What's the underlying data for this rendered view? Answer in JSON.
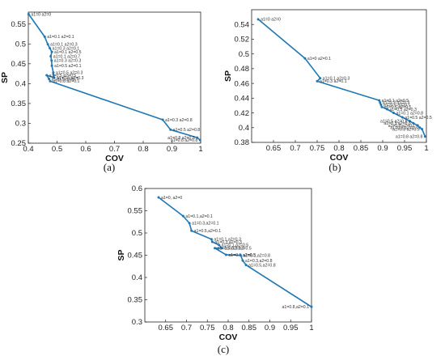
{
  "series_color": "#1f77b4",
  "chart_data": [
    {
      "type": "line",
      "caption": "(a)",
      "xlabel": "COV",
      "ylabel": "SP",
      "xlim": [
        0.4,
        1.0
      ],
      "ylim": [
        0.25,
        0.58
      ],
      "xticks": [
        "0.4",
        "0.5",
        "0.6",
        "0.7",
        "0.8",
        "0.9",
        "1"
      ],
      "yticks": [
        "0.25",
        "0.3",
        "0.35",
        "0.4",
        "0.45",
        "0.5",
        "0.55"
      ],
      "grid": false,
      "points": [
        {
          "x": 0.401,
          "y": 0.575,
          "label": "a1=0 a2=0"
        },
        {
          "x": 0.457,
          "y": 0.518,
          "label": "a1=0.1 a2=0.1"
        },
        {
          "x": 0.468,
          "y": 0.499,
          "label": "a1=0.1 a2=0.3"
        },
        {
          "x": 0.475,
          "y": 0.489,
          "label": "a1=0.3 a2=0.1"
        },
        {
          "x": 0.482,
          "y": 0.48,
          "label": "a1=0.1 a2=0.5"
        },
        {
          "x": 0.478,
          "y": 0.469,
          "label": "a1=0.1 a2=0.7"
        },
        {
          "x": 0.481,
          "y": 0.458,
          "label": "a1=0.3 a2=0.3"
        },
        {
          "x": 0.482,
          "y": 0.445,
          "label": "a1=0.5 a2=0.1"
        },
        {
          "x": 0.487,
          "y": 0.428,
          "label": "a1=0.5 a2=0.3"
        },
        {
          "x": 0.49,
          "y": 0.415,
          "label": "a1=0.6 a2=0.3"
        },
        {
          "x": 0.464,
          "y": 0.421,
          "label": "a1=0.5 a2=0.5"
        },
        {
          "x": 0.472,
          "y": 0.412,
          "label": "a1=0.5 a2=0.7"
        },
        {
          "x": 0.476,
          "y": 0.406,
          "label": "a1=0.8 a2=0.1"
        },
        {
          "x": 0.868,
          "y": 0.309,
          "label": "a1=0.3 a2=0.8"
        },
        {
          "x": 0.895,
          "y": 0.284,
          "label": "a1=0.5 a2=0.8"
        },
        {
          "x": 0.988,
          "y": 0.264,
          "label": "a1=0.8 a2=0.5"
        },
        {
          "x": 0.998,
          "y": 0.258,
          "label": "a1=0.8 a2=0.8"
        }
      ]
    },
    {
      "type": "line",
      "caption": "(b)",
      "xlabel": "COV",
      "ylabel": "SP",
      "xlim": [
        0.6,
        1.0
      ],
      "ylim": [
        0.38,
        0.56
      ],
      "xticks": [
        "0.65",
        "0.7",
        "0.75",
        "0.8",
        "0.85",
        "0.9",
        "0.95",
        "1"
      ],
      "yticks": [
        "0.38",
        "0.4",
        "0.42",
        "0.44",
        "0.46",
        "0.48",
        "0.5",
        "0.52",
        "0.54"
      ],
      "grid": false,
      "points": [
        {
          "x": 0.615,
          "y": 0.547,
          "label": "a1=0 a2=0"
        },
        {
          "x": 0.722,
          "y": 0.494,
          "label": "a1=0 a2=0.1"
        },
        {
          "x": 0.757,
          "y": 0.467,
          "label": "a1=0.1 a2=0.3"
        },
        {
          "x": 0.75,
          "y": 0.463,
          "label": "a1=0.3 a2=0.1"
        },
        {
          "x": 0.892,
          "y": 0.437,
          "label": "a1=0.1 a2=0.5"
        },
        {
          "x": 0.894,
          "y": 0.434,
          "label": "a1=0.3 a2=0.3"
        },
        {
          "x": 0.896,
          "y": 0.431,
          "label": "a1=0.5 a2=0.1"
        },
        {
          "x": 0.898,
          "y": 0.428,
          "label": "a1=0.6 a2=0.1"
        },
        {
          "x": 0.91,
          "y": 0.425,
          "label": "a1=0.5 a2=0.3"
        },
        {
          "x": 0.925,
          "y": 0.42,
          "label": "a1=0.1 a2=0.8"
        },
        {
          "x": 0.945,
          "y": 0.414,
          "label": "a1=0.5 a2=0.5"
        },
        {
          "x": 0.962,
          "y": 0.409,
          "label": "a1=0.5 a2=0.8"
        },
        {
          "x": 0.97,
          "y": 0.406,
          "label": "a1=0.3 a2=0.8"
        },
        {
          "x": 0.98,
          "y": 0.403,
          "label": "a1=0.8 a2=0.1"
        },
        {
          "x": 0.985,
          "y": 0.4,
          "label": "a1=0.8 a2=0.3"
        },
        {
          "x": 0.99,
          "y": 0.398,
          "label": "a1=0.8 a2=0.5"
        },
        {
          "x": 0.997,
          "y": 0.388,
          "label": "a1=0.8 a2=0.8"
        }
      ]
    },
    {
      "type": "line",
      "caption": "(c)",
      "xlabel": "COV",
      "ylabel": "SP",
      "xlim": [
        0.6,
        1.0
      ],
      "ylim": [
        0.3,
        0.6
      ],
      "xticks": [
        "0.65",
        "0.7",
        "0.75",
        "0.8",
        "0.85",
        "0.9",
        "0.95",
        "1"
      ],
      "yticks": [
        "0.3",
        "0.35",
        "0.4",
        "0.45",
        "0.5",
        "0.55",
        "0.6"
      ],
      "grid": false,
      "points": [
        {
          "x": 0.633,
          "y": 0.58,
          "label": "a1=0, a2=0"
        },
        {
          "x": 0.692,
          "y": 0.538,
          "label": "a1=0.1,a2=0.1"
        },
        {
          "x": 0.707,
          "y": 0.522,
          "label": "a1=0.3,a2=0.1"
        },
        {
          "x": 0.712,
          "y": 0.505,
          "label": "a1=0.5,a2=0.1"
        },
        {
          "x": 0.76,
          "y": 0.486,
          "label": "a1=0.1,a2=0.3"
        },
        {
          "x": 0.762,
          "y": 0.48,
          "label": "a1=0.3,a2=0.3"
        },
        {
          "x": 0.778,
          "y": 0.473,
          "label": "a1=0.1,a2=0.5"
        },
        {
          "x": 0.785,
          "y": 0.466,
          "label": "a1=0.3,a2=0.5"
        },
        {
          "x": 0.768,
          "y": 0.466,
          "label": "a1=0.5,a2=0.3"
        },
        {
          "x": 0.795,
          "y": 0.451,
          "label": "a1=0.5,a2=0.5"
        },
        {
          "x": 0.83,
          "y": 0.45,
          "label": "a1=0.1,a2=0.8"
        },
        {
          "x": 0.835,
          "y": 0.438,
          "label": "a1=0.3,a2=0.8"
        },
        {
          "x": 0.843,
          "y": 0.428,
          "label": "a1=0.5,a2=0.8"
        },
        {
          "x": 1.0,
          "y": 0.334,
          "label": "a1=0.8,a2=0.1"
        }
      ]
    }
  ]
}
